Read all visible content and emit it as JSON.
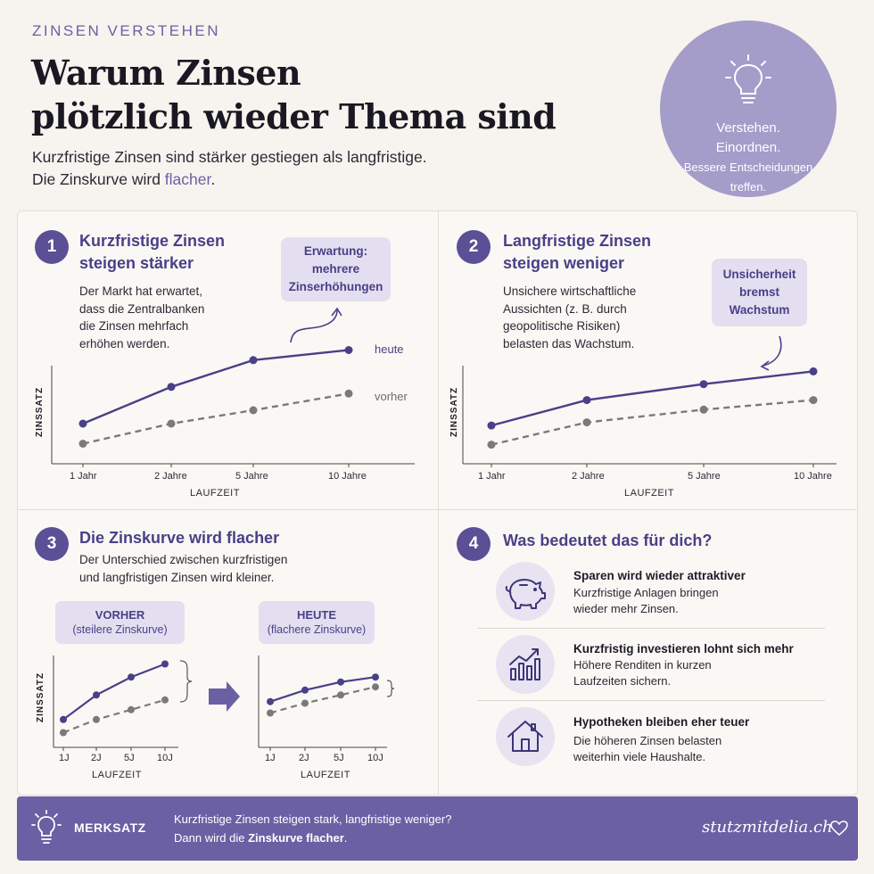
{
  "header": {
    "eyebrow": "ZINSEN VERSTEHEN",
    "title_line1": "Warum Zinsen",
    "title_line2": "plötzlich wieder Thema sind",
    "subtitle_line1": "Kurzfristige Zinsen sind stärker gestiegen als langfristige.",
    "subtitle_line2_prefix": "Die Zinskurve wird ",
    "subtitle_line2_accent": "flacher",
    "subtitle_line2_suffix": "."
  },
  "badge": {
    "icon": "lightbulb-icon",
    "line1": "Verstehen.",
    "line2": "Einordnen.",
    "line3": "Bessere Entscheidungen",
    "line4": "treffen."
  },
  "panel1": {
    "number": "1",
    "title_line1": "Kurzfristige Zinsen",
    "title_line2": "steigen stärker",
    "text_line1": "Der Markt hat erwartet,",
    "text_line2": "dass die Zentralbanken",
    "text_line3": "die Zinsen mehrfach",
    "text_line4": "erhöhen werden.",
    "callout_line1": "Erwartung:",
    "callout_line2": "mehrere",
    "callout_line3": "Zinserhöhungen",
    "series_today": "heute",
    "series_before": "vorher",
    "ylabel": "ZINSSATZ",
    "xlabel": "LAUFZEIT",
    "ticks": [
      "1 Jahr",
      "2 Jahre",
      "5 Jahre",
      "10 Jahre"
    ]
  },
  "panel2": {
    "number": "2",
    "title_line1": "Langfristige Zinsen",
    "title_line2": "steigen weniger",
    "text_line1": "Unsichere wirtschaftliche",
    "text_line2": "Aussichten (z. B. durch",
    "text_line3": "geopolitische Risiken)",
    "text_line4": "belasten das Wachstum.",
    "callout_line1": "Unsicherheit",
    "callout_line2": "bremst",
    "callout_line3": "Wachstum",
    "ylabel": "ZINSSATZ",
    "xlabel": "LAUFZEIT",
    "ticks": [
      "1 Jahr",
      "2 Jahre",
      "5 Jahre",
      "10 Jahre"
    ]
  },
  "panel3": {
    "number": "3",
    "title": "Die Zinskurve wird flacher",
    "text_line1": "Der Unterschied zwischen kurzfristigen",
    "text_line2": "und langfristigen Zinsen wird kleiner.",
    "before_title": "VORHER",
    "before_sub": "(steilere Zinskurve)",
    "after_title": "HEUTE",
    "after_sub": "(flachere Zinskurve)",
    "ylabel": "ZINSSATZ",
    "xlabel": "LAUFZEIT",
    "ticks": [
      "1J",
      "2J",
      "5J",
      "10J"
    ]
  },
  "panel4": {
    "number": "4",
    "title": "Was bedeutet das für dich?",
    "items": [
      {
        "icon": "piggy-bank-icon",
        "title": "Sparen wird wieder attraktiver",
        "line1": "Kurzfristige Anlagen bringen",
        "line2": "wieder mehr Zinsen."
      },
      {
        "icon": "bar-chart-growth-icon",
        "title": "Kurzfristig investieren lohnt sich mehr",
        "line1": "Höhere Renditen in kurzen",
        "line2": "Laufzeiten sichern."
      },
      {
        "icon": "house-icon",
        "title": "Hypotheken bleiben eher teuer",
        "line1": "Die höheren Zinsen belasten",
        "line2": "weiterhin viele Haushalte."
      }
    ]
  },
  "footer": {
    "icon": "lightbulb-icon",
    "label": "MERKSATZ",
    "line1": "Kurzfristige Zinsen steigen stark, langfristige weniger?",
    "line2_prefix": "Dann wird die ",
    "line2_bold": "Zinskurve flacher",
    "line2_suffix": ".",
    "brand": "stutzmitdelia.ch",
    "heart_icon": "heart-icon"
  },
  "colors": {
    "accent": "#5b4f96",
    "badge": "#a49cc9",
    "callout": "#e3dff0",
    "grey_series": "#7a7a7a"
  },
  "chart_data": [
    {
      "type": "line",
      "categories": [
        "1 Jahr",
        "2 Jahre",
        "5 Jahre",
        "10 Jahre"
      ],
      "series": [
        {
          "name": "heute",
          "values": [
            3.0,
            4.1,
            4.9,
            5.2
          ]
        },
        {
          "name": "vorher",
          "values": [
            2.4,
            3.0,
            3.4,
            3.9
          ]
        }
      ],
      "xlabel": "LAUFZEIT",
      "ylabel": "ZINSSATZ",
      "ylim": [
        1.8,
        5.8
      ],
      "grid": false
    },
    {
      "type": "line",
      "categories": [
        "1 Jahr",
        "2 Jahre",
        "5 Jahre",
        "10 Jahre"
      ],
      "series": [
        {
          "values": [
            2.6,
            3.4,
            3.9,
            4.3
          ]
        },
        {
          "values": [
            2.0,
            2.7,
            3.1,
            3.4
          ]
        }
      ],
      "xlabel": "LAUFZEIT",
      "ylabel": "ZINSSATZ",
      "ylim": [
        1.4,
        5.6
      ],
      "grid": false
    },
    {
      "type": "line",
      "title": "VORHER",
      "categories": [
        "1J",
        "2J",
        "5J",
        "10J"
      ],
      "series": [
        {
          "values": [
            2.2,
            3.7,
            4.8,
            5.6
          ]
        },
        {
          "values": [
            1.4,
            2.2,
            2.8,
            3.4
          ]
        }
      ],
      "xlabel": "LAUFZEIT",
      "ylabel": "ZINSSATZ",
      "ylim": [
        0.5,
        6.5
      ]
    },
    {
      "type": "line",
      "title": "HEUTE",
      "categories": [
        "1J",
        "2J",
        "5J",
        "10J"
      ],
      "series": [
        {
          "values": [
            3.3,
            4.0,
            4.5,
            4.8
          ]
        },
        {
          "values": [
            2.6,
            3.2,
            3.7,
            4.2
          ]
        }
      ],
      "xlabel": "LAUFZEIT",
      "ylabel": "",
      "ylim": [
        0.5,
        6.5
      ]
    }
  ]
}
